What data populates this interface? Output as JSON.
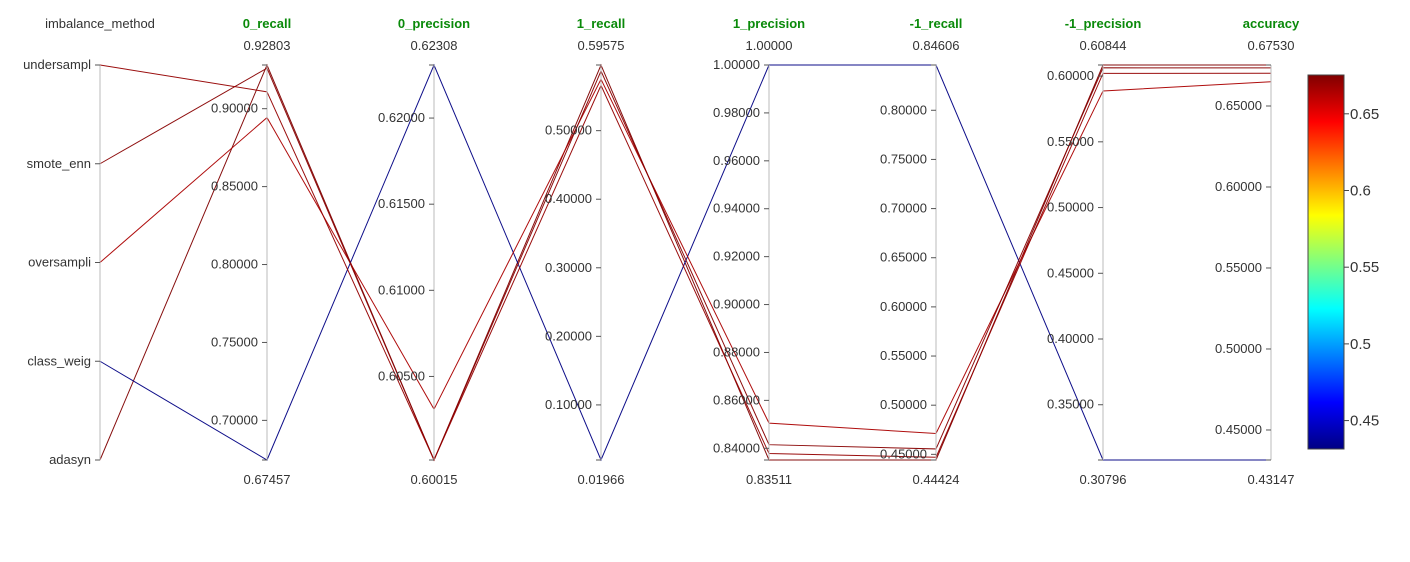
{
  "chart_data": {
    "type": "parcoords",
    "colorscale": "Jet",
    "color_range": [
      0.43147,
      0.6753
    ],
    "colorbar_ticks": [
      "0.45",
      "0.5",
      "0.55",
      "0.6",
      "0.65"
    ],
    "colorbar_tick_values": [
      0.45,
      0.5,
      0.55,
      0.6,
      0.65
    ],
    "dimensions": [
      {
        "label": "imbalance_method",
        "categorical": true,
        "categories": [
          "undersampl",
          "smote_enn",
          "oversampli",
          "class_weig",
          "adasyn"
        ],
        "range": [
          0,
          4
        ],
        "ticks": []
      },
      {
        "label": "0_recall",
        "range": [
          0.67457,
          0.92803
        ],
        "range_labels": [
          "0.92803",
          "0.67457"
        ],
        "ticks": [
          0.7,
          0.75,
          0.8,
          0.85,
          0.9
        ],
        "tick_labels": [
          "0.70000",
          "0.75000",
          "0.80000",
          "0.85000",
          "0.90000"
        ]
      },
      {
        "label": "0_precision",
        "range": [
          0.60015,
          0.62308
        ],
        "range_labels": [
          "0.62308",
          "0.60015"
        ],
        "ticks": [
          0.605,
          0.61,
          0.615,
          0.62
        ],
        "tick_labels": [
          "0.60500",
          "0.61000",
          "0.61500",
          "0.62000"
        ]
      },
      {
        "label": "1_recall",
        "range": [
          0.01966,
          0.59575
        ],
        "range_labels": [
          "0.59575",
          "0.01966"
        ],
        "ticks": [
          0.1,
          0.2,
          0.3,
          0.4,
          0.5
        ],
        "tick_labels": [
          "0.10000",
          "0.20000",
          "0.30000",
          "0.40000",
          "0.50000"
        ]
      },
      {
        "label": "1_precision",
        "range": [
          0.83511,
          1.0
        ],
        "range_labels": [
          "1.00000",
          "0.83511"
        ],
        "ticks": [
          0.84,
          0.86,
          0.88,
          0.9,
          0.92,
          0.94,
          0.96,
          0.98,
          1.0
        ],
        "tick_labels": [
          "0.84000",
          "0.86000",
          "0.88000",
          "0.90000",
          "0.92000",
          "0.94000",
          "0.96000",
          "0.98000",
          "1.00000"
        ]
      },
      {
        "label": "-1_recall",
        "range": [
          0.44424,
          0.84606
        ],
        "range_labels": [
          "0.84606",
          "0.44424"
        ],
        "ticks": [
          0.45,
          0.5,
          0.55,
          0.6,
          0.65,
          0.7,
          0.75,
          0.8
        ],
        "tick_labels": [
          "0.45000",
          "0.50000",
          "0.55000",
          "0.60000",
          "0.65000",
          "0.70000",
          "0.75000",
          "0.80000"
        ]
      },
      {
        "label": "-1_precision",
        "range": [
          0.30796,
          0.60844
        ],
        "range_labels": [
          "0.60844",
          "0.30796"
        ],
        "ticks": [
          0.35,
          0.4,
          0.45,
          0.5,
          0.55,
          0.6
        ],
        "tick_labels": [
          "0.35000",
          "0.40000",
          "0.45000",
          "0.50000",
          "0.55000",
          "0.60000"
        ]
      },
      {
        "label": "accuracy",
        "range": [
          0.43147,
          0.6753
        ],
        "range_labels": [
          "0.67530",
          "0.43147"
        ],
        "ticks": [
          0.45,
          0.5,
          0.55,
          0.6,
          0.65
        ],
        "tick_labels": [
          "0.45000",
          "0.50000",
          "0.55000",
          "0.60000",
          "0.65000"
        ]
      }
    ],
    "rows": [
      [
        0,
        0.92803,
        0.60015,
        0.59575,
        0.83511,
        0.44424,
        0.60844,
        0.6753
      ],
      [
        1,
        0.67457,
        0.62308,
        0.01966,
        1.0,
        0.84606,
        0.30796,
        0.43147
      ],
      [
        2,
        0.8943,
        0.6031,
        0.575,
        0.8505,
        0.4712,
        0.5887,
        0.665
      ],
      [
        3,
        0.926,
        0.60015,
        0.587,
        0.8415,
        0.4555,
        0.6063,
        0.6735
      ],
      [
        4,
        0.9108,
        0.60015,
        0.566,
        0.8378,
        0.447,
        0.6021,
        0.6702
      ]
    ]
  }
}
